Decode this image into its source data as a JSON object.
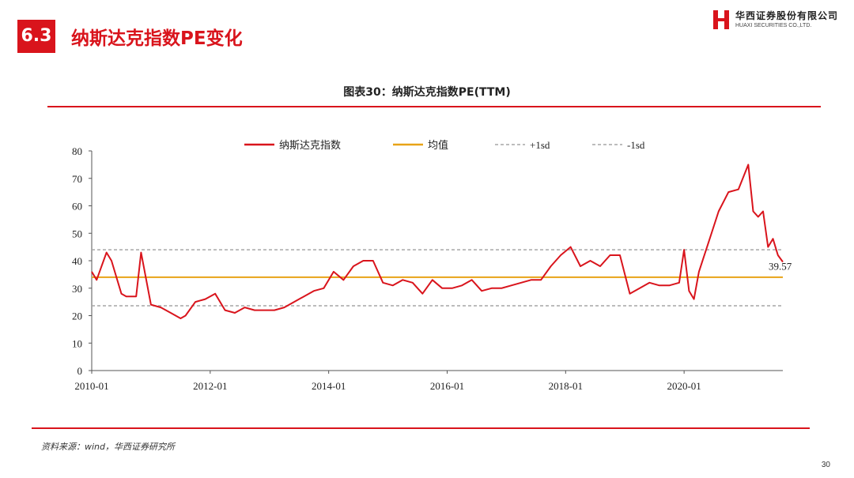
{
  "header": {
    "section_number": "6.3",
    "title": "纳斯达克指数PE变化",
    "logo_cn": "华西证券股份有限公司",
    "logo_en": "HUAXI SECURITIES CO.,LTD."
  },
  "chart_data": {
    "type": "line",
    "title": "图表30：纳斯达克指数PE(TTM)",
    "x_ticks": [
      "2010-01",
      "2012-01",
      "2014-01",
      "2016-01",
      "2018-01",
      "2020-01"
    ],
    "x_range": [
      "2010-01",
      "2021-09"
    ],
    "ylim": [
      0,
      80
    ],
    "y_ticks": [
      0,
      10,
      20,
      30,
      40,
      50,
      60,
      70,
      80
    ],
    "grid": false,
    "legend": "top",
    "series": [
      {
        "name": "纳斯达克指数",
        "color": "#d9141c",
        "x": [
          "2010-01",
          "2010-02",
          "2010-04",
          "2010-05",
          "2010-07",
          "2010-08",
          "2010-10",
          "2010-11",
          "2011-01",
          "2011-03",
          "2011-05",
          "2011-07",
          "2011-08",
          "2011-10",
          "2011-12",
          "2012-02",
          "2012-04",
          "2012-06",
          "2012-08",
          "2012-10",
          "2012-12",
          "2013-02",
          "2013-04",
          "2013-06",
          "2013-08",
          "2013-10",
          "2013-12",
          "2014-02",
          "2014-04",
          "2014-06",
          "2014-08",
          "2014-10",
          "2014-12",
          "2015-02",
          "2015-04",
          "2015-06",
          "2015-08",
          "2015-10",
          "2015-12",
          "2016-02",
          "2016-04",
          "2016-06",
          "2016-08",
          "2016-10",
          "2016-12",
          "2017-02",
          "2017-04",
          "2017-06",
          "2017-08",
          "2017-10",
          "2017-12",
          "2018-02",
          "2018-04",
          "2018-06",
          "2018-08",
          "2018-10",
          "2018-12",
          "2019-02",
          "2019-04",
          "2019-06",
          "2019-08",
          "2019-10",
          "2019-12",
          "2020-01",
          "2020-02",
          "2020-03",
          "2020-04",
          "2020-06",
          "2020-08",
          "2020-10",
          "2020-12",
          "2021-02",
          "2021-03",
          "2021-04",
          "2021-05",
          "2021-06",
          "2021-07",
          "2021-08",
          "2021-09"
        ],
        "values": [
          36,
          33,
          43,
          40,
          28,
          27,
          27,
          43,
          24,
          23,
          21,
          19,
          20,
          25,
          26,
          28,
          22,
          21,
          23,
          22,
          22,
          22,
          23,
          25,
          27,
          29,
          30,
          36,
          33,
          38,
          40,
          40,
          32,
          31,
          33,
          32,
          28,
          33,
          30,
          30,
          31,
          33,
          29,
          30,
          30,
          31,
          32,
          33,
          33,
          38,
          42,
          45,
          38,
          40,
          38,
          42,
          42,
          28,
          30,
          32,
          31,
          31,
          32,
          44,
          29,
          26,
          36,
          47,
          58,
          65,
          66,
          75,
          58,
          56,
          58,
          45,
          48,
          42,
          39.57
        ]
      },
      {
        "name": "均值",
        "color": "#e8a317",
        "value": 34
      },
      {
        "name": "+1sd",
        "color": "#a6a6a6",
        "value": 44
      },
      {
        "name": "-1sd",
        "color": "#a6a6a6",
        "value": 23.6
      }
    ],
    "annotations": [
      {
        "text": "39.57",
        "x": "2021-09",
        "y": 39.57
      }
    ]
  },
  "footer": {
    "source": "资料来源：wind，华西证券研究所",
    "page_number": "30"
  }
}
